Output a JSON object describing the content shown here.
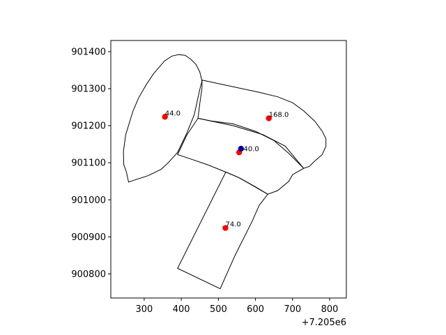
{
  "chart_data": {
    "type": "scatter",
    "title": "",
    "xlabel": "",
    "ylabel": "",
    "x_offset_label": "+7.205e6",
    "xlim": [
      210,
      845
    ],
    "ylim": [
      900735,
      901430
    ],
    "x_ticks": [
      {
        "value": 300,
        "label": "300"
      },
      {
        "value": 400,
        "label": "400"
      },
      {
        "value": 500,
        "label": "500"
      },
      {
        "value": 600,
        "label": "600"
      },
      {
        "value": 700,
        "label": "700"
      },
      {
        "value": 800,
        "label": "800"
      }
    ],
    "y_ticks": [
      {
        "value": 900800,
        "label": "900800"
      },
      {
        "value": 900900,
        "label": "900900"
      },
      {
        "value": 901000,
        "label": "901000"
      },
      {
        "value": 901100,
        "label": "901100"
      },
      {
        "value": 901200,
        "label": "901200"
      },
      {
        "value": 901300,
        "label": "901300"
      },
      {
        "value": 901400,
        "label": "901400"
      }
    ],
    "grid": false,
    "colors": {
      "points": "#ff0000",
      "highlight": "#0000cc",
      "polygon_edge": "#000000"
    },
    "polygons": [
      {
        "points": [
          [
            258,
            901048
          ],
          [
            252,
            901075
          ],
          [
            245,
            901095
          ],
          [
            244,
            901130
          ],
          [
            250,
            901175
          ],
          [
            270,
            901240
          ],
          [
            285,
            901275
          ],
          [
            305,
            901310
          ],
          [
            325,
            901340
          ],
          [
            355,
            901375
          ],
          [
            375,
            901388
          ],
          [
            393,
            901392
          ],
          [
            410,
            901390
          ],
          [
            425,
            901380
          ],
          [
            440,
            901365
          ],
          [
            450,
            901345
          ],
          [
            456,
            901320
          ],
          [
            450,
            901298
          ],
          [
            435,
            901230
          ],
          [
            415,
            901180
          ],
          [
            390,
            901128
          ],
          [
            365,
            901100
          ],
          [
            345,
            901082
          ],
          [
            310,
            901065
          ],
          [
            270,
            901052
          ]
        ]
      },
      {
        "points": [
          [
            456,
            901323
          ],
          [
            610,
            901290
          ],
          [
            660,
            901278
          ],
          [
            700,
            901262
          ],
          [
            730,
            901240
          ],
          [
            760,
            901212
          ],
          [
            780,
            901185
          ],
          [
            790,
            901165
          ],
          [
            790,
            901145
          ],
          [
            780,
            901122
          ],
          [
            760,
            901105
          ],
          [
            745,
            901090
          ],
          [
            730,
            901085
          ],
          [
            690,
            901125
          ],
          [
            650,
            901160
          ],
          [
            600,
            901185
          ],
          [
            540,
            901205
          ],
          [
            480,
            901213
          ],
          [
            445,
            901220
          ],
          [
            450,
            901260
          ],
          [
            456,
            901302
          ]
        ]
      },
      {
        "points": [
          [
            445,
            901220
          ],
          [
            540,
            901200
          ],
          [
            620,
            901176
          ],
          [
            680,
            901145
          ],
          [
            730,
            901085
          ],
          [
            700,
            901068
          ],
          [
            690,
            901050
          ],
          [
            660,
            901025
          ],
          [
            633,
            901015
          ],
          [
            600,
            901035
          ],
          [
            555,
            901060
          ],
          [
            520,
            901075
          ],
          [
            470,
            901095
          ],
          [
            420,
            901112
          ],
          [
            390,
            901122
          ],
          [
            415,
            901175
          ]
        ]
      },
      {
        "points": [
          [
            520,
            901075
          ],
          [
            390,
            900815
          ],
          [
            505,
            900760
          ],
          [
            545,
            900850
          ],
          [
            590,
            900940
          ],
          [
            610,
            900985
          ],
          [
            633,
            901015
          ],
          [
            590,
            901040
          ],
          [
            555,
            901060
          ]
        ]
      }
    ],
    "points": [
      {
        "x": 356,
        "y": 901224,
        "label": "44.0"
      },
      {
        "x": 636,
        "y": 901220,
        "label": "168.0"
      },
      {
        "x": 556,
        "y": 901128,
        "label": "240.0"
      },
      {
        "x": 519,
        "y": 900924,
        "label": "74.0"
      }
    ],
    "highlight_point": {
      "x": 561,
      "y": 901138
    }
  }
}
